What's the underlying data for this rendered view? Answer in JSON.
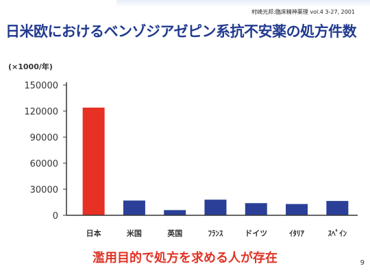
{
  "citation": "村崎光邦:臨床精神薬理 vol.4 3-27, 2001",
  "title": "日米欧におけるベンゾジアゼピン系抗不安薬の処方件数",
  "unit": "(×1000/年)",
  "note": "濫用目的で処方を求める人が存在",
  "page_number": "9",
  "colors": {
    "title": "#213a8f",
    "highlight_bar": "#e63124",
    "bar": "#2b3f98",
    "note": "#e03224"
  },
  "chart_data": {
    "type": "bar",
    "categories": [
      "日本",
      "米国",
      "英国",
      "ﾌﾗﾝｽ",
      "ドイツ",
      "ｲﾀﾘｱ",
      "ｽﾍﾟｲﾝ"
    ],
    "values": [
      124000,
      17000,
      6000,
      18000,
      14000,
      13000,
      16500
    ],
    "highlight_index": 0,
    "ylim": [
      0,
      150000
    ],
    "yticks": [
      0,
      30000,
      60000,
      90000,
      120000,
      150000
    ],
    "ytick_labels": [
      "0",
      "30000",
      "60000",
      "90000",
      "120000",
      "150000"
    ],
    "grid": false
  }
}
